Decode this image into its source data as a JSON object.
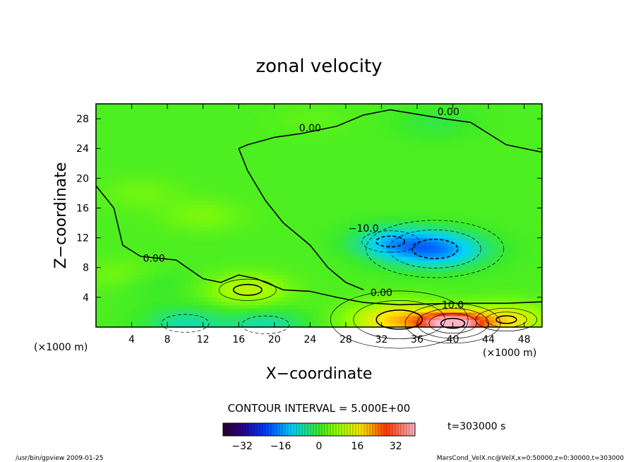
{
  "chart_data": {
    "type": "heatmap",
    "title": "zonal velocity",
    "xlabel": "X−coordinate",
    "ylabel": "Z−coordinate",
    "x_unit": "(×1000 m)",
    "y_unit": "(×1000 m)",
    "xlim": [
      0,
      50
    ],
    "ylim": [
      0,
      30
    ],
    "x_ticks": [
      4,
      8,
      12,
      16,
      20,
      24,
      28,
      32,
      36,
      40,
      44,
      48
    ],
    "y_ticks": [
      4,
      8,
      12,
      16,
      20,
      24,
      28
    ],
    "contour_interval_label": "CONTOUR INTERVAL = 5.000E+00",
    "time_label": "t=303000 s",
    "colorbar": {
      "range": [
        -40,
        40
      ],
      "ticks": [
        -32,
        -16,
        0,
        16,
        32
      ]
    },
    "contour_labels": [
      {
        "text": "0.00",
        "x": 24.0,
        "y": 26.3
      },
      {
        "text": "0.00",
        "x": 39.5,
        "y": 28.5
      },
      {
        "text": "−10.0",
        "x": 30.0,
        "y": 12.8
      },
      {
        "text": "0.00",
        "x": 6.5,
        "y": 8.8
      },
      {
        "text": "0.00",
        "x": 32.0,
        "y": 4.2
      },
      {
        "text": "10.0",
        "x": 40.0,
        "y": 2.5
      }
    ],
    "features": [
      {
        "x": 12.0,
        "y": 15.0,
        "v": 4.0
      },
      {
        "x": 5.0,
        "y": 18.0,
        "v": 3.0
      },
      {
        "x": 3.0,
        "y": 7.0,
        "v": 4.0
      },
      {
        "x": 17.0,
        "y": 5.0,
        "v": 10.0
      },
      {
        "x": 40.0,
        "y": 0.5,
        "v": 38.0
      },
      {
        "x": 34.0,
        "y": 1.0,
        "v": 18.0
      },
      {
        "x": 46.0,
        "y": 1.0,
        "v": 15.0
      },
      {
        "x": 38.0,
        "y": 10.5,
        "v": -18.0
      },
      {
        "x": 33.0,
        "y": 11.5,
        "v": -10.0
      },
      {
        "x": 10.0,
        "y": 0.5,
        "v": -8.0
      },
      {
        "x": 19.0,
        "y": 0.3,
        "v": -8.0
      },
      {
        "x": 6.0,
        "y": 6.0,
        "v": -3.0
      },
      {
        "x": 24.0,
        "y": 28.0,
        "v": 1.5
      },
      {
        "x": 38.0,
        "y": 27.5,
        "v": -3.0
      }
    ]
  },
  "footer": {
    "left": "/usr/bin/gpview   2009-01-25",
    "right": "MarsCond_VelX.nc@VelX,x=0:50000,z=0:30000,t=303000"
  }
}
